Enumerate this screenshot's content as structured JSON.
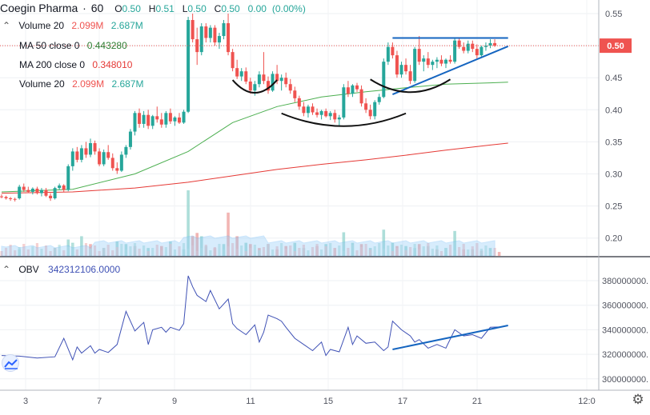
{
  "header": {
    "symbol": "Coegin Pharma",
    "interval": "60",
    "ohlc": [
      {
        "label": "O",
        "value": "0.50"
      },
      {
        "label": "H",
        "value": "0.51"
      },
      {
        "label": "L",
        "value": "0.50"
      },
      {
        "label": "C",
        "value": "0.50"
      }
    ],
    "change": "0.00",
    "change_pct": "(0.00%)"
  },
  "indicators": {
    "volume": {
      "label": "Volume 20",
      "v1": "2.099M",
      "v2": "2.687M"
    },
    "ma50": {
      "label": "MA 50 close 0",
      "value": "0.443280"
    },
    "ma200": {
      "label": "MA 200 close 0",
      "value": "0.348010"
    },
    "volume2": {
      "label": "Volume 20",
      "v1": "2.099M",
      "v2": "2.687M"
    }
  },
  "obv_legend": {
    "label": "OBV",
    "value": "342312106.0000"
  },
  "colors": {
    "up": "#26a69a",
    "down": "#ef5350",
    "ma50": "#4caf50",
    "ma200": "#e53935",
    "obv": "#3f51b5",
    "trendline": "#1565c0",
    "price_tag": "#ef5350"
  },
  "chart_data": [
    {
      "type": "candlestick",
      "title": "Coegin Pharma · 60",
      "ylim": [
        0.17,
        0.57
      ],
      "yticks": [
        "0.55",
        "0.50",
        "0.45",
        "0.40",
        "0.35",
        "0.30",
        "0.25",
        "0.20"
      ],
      "last_price": "0.50",
      "xticks": [
        "3",
        "7",
        "9",
        "11",
        "15",
        "17",
        "21",
        "12:0"
      ],
      "candles": [
        [
          0.265,
          0.268,
          0.262,
          0.264
        ],
        [
          0.264,
          0.266,
          0.26,
          0.262
        ],
        [
          0.262,
          0.264,
          0.258,
          0.261
        ],
        [
          0.261,
          0.263,
          0.257,
          0.26
        ],
        [
          0.262,
          0.283,
          0.26,
          0.28
        ],
        [
          0.28,
          0.285,
          0.272,
          0.275
        ],
        [
          0.275,
          0.28,
          0.27,
          0.272
        ],
        [
          0.272,
          0.279,
          0.268,
          0.277
        ],
        [
          0.277,
          0.28,
          0.268,
          0.27
        ],
        [
          0.27,
          0.278,
          0.265,
          0.275
        ],
        [
          0.275,
          0.278,
          0.264,
          0.266
        ],
        [
          0.266,
          0.27,
          0.258,
          0.262
        ],
        [
          0.262,
          0.28,
          0.26,
          0.278
        ],
        [
          0.278,
          0.285,
          0.275,
          0.282
        ],
        [
          0.282,
          0.284,
          0.272,
          0.275
        ],
        [
          0.275,
          0.315,
          0.273,
          0.312
        ],
        [
          0.312,
          0.34,
          0.305,
          0.335
        ],
        [
          0.335,
          0.342,
          0.318,
          0.322
        ],
        [
          0.322,
          0.345,
          0.318,
          0.34
        ],
        [
          0.34,
          0.35,
          0.325,
          0.33
        ],
        [
          0.33,
          0.355,
          0.326,
          0.348
        ],
        [
          0.348,
          0.352,
          0.33,
          0.335
        ],
        [
          0.335,
          0.34,
          0.312,
          0.315
        ],
        [
          0.315,
          0.338,
          0.312,
          0.334
        ],
        [
          0.334,
          0.345,
          0.322,
          0.325
        ],
        [
          0.325,
          0.332,
          0.305,
          0.309
        ],
        [
          0.309,
          0.318,
          0.3,
          0.305
        ],
        [
          0.305,
          0.335,
          0.303,
          0.33
        ],
        [
          0.33,
          0.345,
          0.325,
          0.342
        ],
        [
          0.342,
          0.37,
          0.338,
          0.366
        ],
        [
          0.366,
          0.398,
          0.36,
          0.395
        ],
        [
          0.395,
          0.402,
          0.372,
          0.378
        ],
        [
          0.378,
          0.398,
          0.372,
          0.392
        ],
        [
          0.392,
          0.4,
          0.37,
          0.375
        ],
        [
          0.375,
          0.392,
          0.37,
          0.39
        ],
        [
          0.39,
          0.405,
          0.38,
          0.385
        ],
        [
          0.385,
          0.395,
          0.372,
          0.377
        ],
        [
          0.377,
          0.398,
          0.372,
          0.395
        ],
        [
          0.395,
          0.402,
          0.378,
          0.382
        ],
        [
          0.382,
          0.39,
          0.375,
          0.388
        ],
        [
          0.388,
          0.395,
          0.378,
          0.38
        ],
        [
          0.38,
          0.4,
          0.378,
          0.397
        ],
        [
          0.397,
          0.545,
          0.395,
          0.54
        ],
        [
          0.54,
          0.55,
          0.505,
          0.51
        ],
        [
          0.51,
          0.528,
          0.47,
          0.49
        ],
        [
          0.49,
          0.535,
          0.485,
          0.53
        ],
        [
          0.53,
          0.535,
          0.505,
          0.512
        ],
        [
          0.512,
          0.532,
          0.505,
          0.528
        ],
        [
          0.528,
          0.532,
          0.5,
          0.505
        ],
        [
          0.505,
          0.52,
          0.495,
          0.515
        ],
        [
          0.515,
          0.54,
          0.51,
          0.535
        ],
        [
          0.535,
          0.55,
          0.485,
          0.49
        ],
        [
          0.49,
          0.495,
          0.46,
          0.465
        ],
        [
          0.465,
          0.478,
          0.448,
          0.452
        ],
        [
          0.452,
          0.465,
          0.445,
          0.46
        ],
        [
          0.46,
          0.466,
          0.44,
          0.444
        ],
        [
          0.444,
          0.45,
          0.425,
          0.43
        ],
        [
          0.43,
          0.445,
          0.422,
          0.44
        ],
        [
          0.44,
          0.46,
          0.435,
          0.455
        ],
        [
          0.455,
          0.49,
          0.44,
          0.445
        ],
        [
          0.445,
          0.452,
          0.425,
          0.43
        ],
        [
          0.43,
          0.46,
          0.428,
          0.456
        ],
        [
          0.456,
          0.47,
          0.44,
          0.445
        ],
        [
          0.445,
          0.455,
          0.43,
          0.45
        ],
        [
          0.45,
          0.458,
          0.435,
          0.44
        ],
        [
          0.44,
          0.448,
          0.425,
          0.43
        ],
        [
          0.43,
          0.436,
          0.412,
          0.418
        ],
        [
          0.418,
          0.422,
          0.4,
          0.405
        ],
        [
          0.405,
          0.412,
          0.39,
          0.395
        ],
        [
          0.395,
          0.408,
          0.388,
          0.405
        ],
        [
          0.405,
          0.41,
          0.392,
          0.396
        ],
        [
          0.396,
          0.402,
          0.388,
          0.392
        ],
        [
          0.392,
          0.4,
          0.385,
          0.398
        ],
        [
          0.398,
          0.402,
          0.388,
          0.39
        ],
        [
          0.39,
          0.398,
          0.384,
          0.395
        ],
        [
          0.395,
          0.4,
          0.38,
          0.385
        ],
        [
          0.385,
          0.392,
          0.375,
          0.388
        ],
        [
          0.388,
          0.44,
          0.385,
          0.435
        ],
        [
          0.435,
          0.445,
          0.42,
          0.425
        ],
        [
          0.425,
          0.44,
          0.42,
          0.438
        ],
        [
          0.438,
          0.442,
          0.428,
          0.432
        ],
        [
          0.432,
          0.438,
          0.405,
          0.41
        ],
        [
          0.41,
          0.418,
          0.395,
          0.4
        ],
        [
          0.4,
          0.408,
          0.385,
          0.39
        ],
        [
          0.39,
          0.415,
          0.385,
          0.412
        ],
        [
          0.412,
          0.425,
          0.408,
          0.42
        ],
        [
          0.42,
          0.48,
          0.418,
          0.475
        ],
        [
          0.475,
          0.505,
          0.47,
          0.498
        ],
        [
          0.498,
          0.505,
          0.48,
          0.485
        ],
        [
          0.485,
          0.492,
          0.45,
          0.455
        ],
        [
          0.455,
          0.475,
          0.45,
          0.47
        ],
        [
          0.47,
          0.48,
          0.455,
          0.46
        ],
        [
          0.46,
          0.47,
          0.44,
          0.445
        ],
        [
          0.445,
          0.498,
          0.442,
          0.495
        ],
        [
          0.495,
          0.515,
          0.47,
          0.475
        ],
        [
          0.475,
          0.485,
          0.46,
          0.48
        ],
        [
          0.48,
          0.49,
          0.465,
          0.47
        ],
        [
          0.47,
          0.478,
          0.462,
          0.475
        ],
        [
          0.475,
          0.482,
          0.465,
          0.478
        ],
        [
          0.478,
          0.485,
          0.468,
          0.472
        ],
        [
          0.472,
          0.48,
          0.465,
          0.478
        ],
        [
          0.478,
          0.485,
          0.472,
          0.475
        ],
        [
          0.475,
          0.512,
          0.472,
          0.508
        ],
        [
          0.508,
          0.512,
          0.495,
          0.498
        ],
        [
          0.498,
          0.505,
          0.488,
          0.492
        ],
        [
          0.492,
          0.508,
          0.488,
          0.503
        ],
        [
          0.503,
          0.508,
          0.49,
          0.495
        ],
        [
          0.495,
          0.502,
          0.48,
          0.485
        ],
        [
          0.485,
          0.5,
          0.483,
          0.498
        ],
        [
          0.498,
          0.505,
          0.492,
          0.5
        ],
        [
          0.5,
          0.51,
          0.496,
          0.504
        ],
        [
          0.504,
          0.51,
          0.498,
          0.5
        ]
      ],
      "ma50": {
        "x": [
          0,
          16,
          30,
          42,
          52,
          62,
          72,
          82,
          92,
          100,
          110,
          114
        ],
        "y": [
          0.272,
          0.276,
          0.3,
          0.335,
          0.38,
          0.405,
          0.42,
          0.428,
          0.435,
          0.44,
          0.442,
          0.443
        ]
      },
      "ma200": {
        "x": [
          0,
          16,
          30,
          42,
          52,
          62,
          72,
          82,
          92,
          100,
          110,
          114
        ],
        "y": [
          0.27,
          0.272,
          0.278,
          0.287,
          0.297,
          0.307,
          0.315,
          0.322,
          0.33,
          0.337,
          0.345,
          0.348
        ]
      },
      "volume_bars": [
        [
          4,
          "up",
          0.1
        ],
        [
          12,
          "down",
          0.12
        ],
        [
          15,
          "up",
          0.25
        ],
        [
          16,
          "up",
          0.2
        ],
        [
          18,
          "up",
          0.3
        ],
        [
          20,
          "down",
          0.18
        ],
        [
          23,
          "down",
          0.12
        ],
        [
          26,
          "up",
          0.22
        ],
        [
          28,
          "up",
          0.18
        ],
        [
          30,
          "down",
          0.15
        ],
        [
          33,
          "up",
          0.12
        ],
        [
          36,
          "down",
          0.15
        ],
        [
          38,
          "up",
          0.22
        ],
        [
          41,
          "up",
          0.1
        ],
        [
          42,
          "up",
          1.0
        ],
        [
          43,
          "down",
          0.3
        ],
        [
          44,
          "down",
          0.35
        ],
        [
          45,
          "up",
          0.3
        ],
        [
          46,
          "up",
          0.15
        ],
        [
          48,
          "down",
          0.12
        ],
        [
          50,
          "up",
          0.18
        ],
        [
          51,
          "down",
          0.66
        ],
        [
          53,
          "down",
          0.3
        ],
        [
          55,
          "up",
          0.2
        ],
        [
          56,
          "down",
          0.18
        ],
        [
          58,
          "down",
          0.12
        ],
        [
          60,
          "up",
          0.18
        ],
        [
          62,
          "down",
          0.1
        ],
        [
          64,
          "down",
          0.15
        ],
        [
          66,
          "up",
          0.2
        ],
        [
          68,
          "up",
          0.12
        ],
        [
          71,
          "down",
          0.15
        ],
        [
          73,
          "up",
          0.18
        ],
        [
          75,
          "down",
          0.12
        ],
        [
          77,
          "up",
          0.36
        ],
        [
          79,
          "up",
          0.2
        ],
        [
          81,
          "down",
          0.18
        ],
        [
          83,
          "up",
          0.12
        ],
        [
          86,
          "up",
          0.4
        ],
        [
          88,
          "up",
          0.2
        ],
        [
          89,
          "down",
          0.15
        ],
        [
          91,
          "up",
          0.15
        ],
        [
          93,
          "up",
          0.12
        ],
        [
          94,
          "down",
          0.18
        ],
        [
          96,
          "up",
          0.15
        ],
        [
          98,
          "down",
          0.1
        ],
        [
          100,
          "up",
          0.12
        ],
        [
          102,
          "up",
          0.38
        ],
        [
          104,
          "down",
          0.1
        ],
        [
          106,
          "up",
          0.1
        ],
        [
          108,
          "down",
          0.08
        ],
        [
          110,
          "up",
          0.12
        ],
        [
          112,
          "down",
          0.06
        ]
      ],
      "annotations": [
        {
          "type": "horizontal",
          "y": 0.512,
          "x": [
            88,
            114
          ]
        },
        {
          "type": "trendline",
          "x": [
            88,
            114
          ],
          "y": [
            0.424,
            0.499
          ]
        },
        {
          "type": "arc",
          "x_center": 57,
          "y_bottom": 0.424,
          "width": 5
        },
        {
          "type": "arc",
          "x_center": 77,
          "y_bottom": 0.372,
          "width": 14
        },
        {
          "type": "arc",
          "x_center": 92,
          "y_bottom": 0.425,
          "width": 9
        }
      ]
    },
    {
      "type": "line",
      "title": "OBV",
      "ylim": [
        295000000,
        390000000
      ],
      "yticks": [
        "380000000.",
        "360000000.",
        "340000000.",
        "320000000.",
        "300000000."
      ],
      "x": [
        0,
        4,
        8,
        12,
        14,
        16,
        17,
        18,
        20,
        21,
        22,
        24,
        26,
        28,
        30,
        32,
        33,
        34,
        36,
        37,
        38,
        40,
        41,
        42,
        43,
        44,
        46,
        47,
        49,
        51,
        52,
        53,
        55,
        57,
        58,
        59,
        60,
        62,
        63,
        64,
        66,
        68,
        70,
        72,
        73,
        74,
        76,
        78,
        79,
        80,
        82,
        84,
        86,
        87,
        88,
        90,
        92,
        93,
        94,
        96,
        98,
        100,
        102,
        104,
        106,
        108,
        110,
        112
      ],
      "y": [
        319000000,
        318500000,
        317000000,
        318000000,
        333000000,
        315500000,
        326000000,
        321000000,
        327000000,
        321000000,
        324000000,
        321500000,
        328000000,
        355000000,
        339000000,
        346000000,
        328000000,
        340000000,
        342000000,
        338000000,
        342000000,
        339500000,
        345000000,
        384000000,
        375000000,
        368000000,
        363000000,
        372000000,
        357000000,
        365000000,
        345000000,
        341000000,
        336000000,
        344000000,
        330000000,
        338000000,
        352000000,
        349000000,
        347000000,
        342000000,
        333000000,
        328000000,
        323000000,
        330000000,
        319000000,
        324000000,
        322000000,
        342000000,
        328000000,
        335000000,
        329000000,
        330000000,
        323000000,
        326000000,
        347000000,
        340000000,
        335000000,
        330000000,
        332000000,
        325000000,
        328000000,
        325000000,
        340000000,
        335000000,
        336000000,
        333000000,
        342000000,
        342300000
      ],
      "trendline": {
        "x": [
          88,
          114
        ],
        "y": [
          324000000,
          343500000
        ]
      }
    }
  ]
}
